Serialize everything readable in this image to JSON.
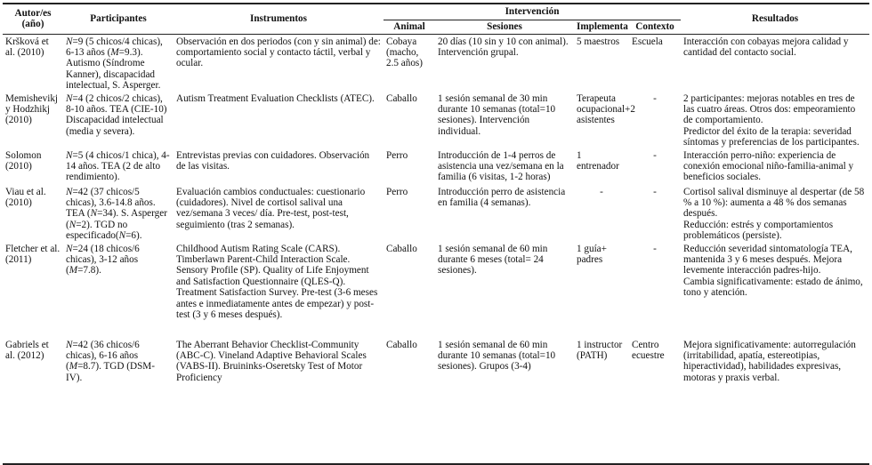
{
  "headers": {
    "autor": "Autor/es (año)",
    "participantes": "Participantes",
    "instrumentos": "Instrumentos",
    "intervencion": "Intervención",
    "animal": "Animal",
    "sesiones": "Sesiones",
    "implementa": "Implementa",
    "contexto": "Contexto",
    "resultados": "Resultados"
  },
  "rows": [
    {
      "autor": "Kršková et al. (2010)",
      "participantes": [
        {
          "t": "N",
          "i": true
        },
        {
          "t": "=9 (5 chicos/4 chicas), 6-13 años ("
        },
        {
          "t": "M",
          "i": true
        },
        {
          "t": "=9.3). Autismo (Síndrome Kanner), discapacidad intelectual, S. Asperger."
        }
      ],
      "instrumentos": "Observación en dos periodos (con y sin animal) de: comportamiento social y contacto táctil, verbal y ocular.",
      "animal": "Cobaya (macho, 2.5 años)",
      "sesiones": "20 días (10 sin y 10 con animal). Intervención grupal.",
      "implementa": "5 maestros",
      "contexto": "Escuela",
      "resultados": [
        "Interacción con cobayas mejora calidad y cantidad del contacto social."
      ]
    },
    {
      "autor": "Memishevikj y Hodzhikj (2010)",
      "participantes": [
        {
          "t": "N",
          "i": true
        },
        {
          "t": "=4 (2 chicos/2 chicas), 8-10 años. TEA (CIE-10) Discapacidad intelectual (media y severa)."
        }
      ],
      "instrumentos": "Autism Treatment Evaluation Checklists (ATEC).",
      "animal": "Caballo",
      "sesiones": "1 sesión semanal de 30 min durante 10 semanas (total=10 sesiones). Intervención individual.",
      "implementa": "Terapeuta ocupacional+2 asistentes",
      "contexto": "-",
      "resultados": [
        "2 participantes: mejoras notables en tres de las cuatro áreas. Otros dos: empeoramiento de comportamiento.",
        "Predictor del éxito de la terapia: severidad síntomas y preferencias de los participantes."
      ]
    },
    {
      "autor": "Solomon (2010)",
      "participantes": [
        {
          "t": "N",
          "i": true
        },
        {
          "t": "=5 (4 chicos/1 chica), 4-14 años. TEA (2 de alto rendimiento)."
        }
      ],
      "instrumentos": "Entrevistas previas con cuidadores. Observación de las visitas.",
      "animal": "Perro",
      "sesiones": "Introducción de 1-4 perros de asistencia una vez/semana en la familia (6 visitas, 1-2 horas)",
      "implementa": "1 entrenador",
      "contexto": "-",
      "resultados": [
        "Interacción perro-niño: experiencia de conexión emocional niño-familia-animal y beneficios sociales."
      ]
    },
    {
      "autor": "Viau et al. (2010)",
      "participantes": [
        {
          "t": "N",
          "i": true
        },
        {
          "t": "=42 (37 chicos/5 chicas), 3.6-14.8 años. TEA ("
        },
        {
          "t": "N",
          "i": true
        },
        {
          "t": "=34). S. Asperger ("
        },
        {
          "t": "N",
          "i": true
        },
        {
          "t": "=2). TGD no especificado("
        },
        {
          "t": "N",
          "i": true
        },
        {
          "t": "=6)."
        }
      ],
      "instrumentos": "Evaluación cambios conductuales: cuestionario (cuidadores). Nivel de cortisol salival una vez/semana 3 veces/ día. Pre-test, post-test, seguimiento (tras 2 semanas).",
      "animal": "Perro",
      "sesiones": "Introducción perro de asistencia en familia (4 semanas).",
      "implementa": "-",
      "contexto": "-",
      "resultados": [
        "Cortisol salival disminuye al despertar (de 58 % a 10 %): aumenta a 48 % dos semanas después.",
        "Reducción: estrés y comportamientos problemáticos (persiste)."
      ]
    },
    {
      "autor": "Fletcher et al. (2011)",
      "participantes": [
        {
          "t": "N",
          "i": true
        },
        {
          "t": "=24 (18 chicos/6 chicas), 3-12 años ("
        },
        {
          "t": "M",
          "i": true
        },
        {
          "t": "=7.8)."
        }
      ],
      "instrumentos": "Childhood Autism Rating Scale (CARS). Timberlawn Parent-Child Interaction Scale. Sensory Profile (SP). Quality of Life Enjoyment and Satisfaction Questionnaire (QLES-Q). Treatment Satisfaction Survey. Pre-test (3-6 meses antes e inmediatamente antes de empezar) y post-test (3 y 6 meses después).",
      "animal": "Caballo",
      "sesiones": "1 sesión semanal de 60 min durante 6 meses (total= 24 sesiones).",
      "implementa": "1 guía+ padres",
      "contexto": "-",
      "resultados": [
        "Reducción severidad sintomatología TEA, mantenida 3 y 6 meses después. Mejora levemente interacción padres-hijo.",
        "Cambia significativamente: estado de ánimo, tono y atención."
      ]
    },
    {
      "autor": "Gabriels et al. (2012)",
      "participantes": [
        {
          "t": "N",
          "i": true
        },
        {
          "t": "=42 (36 chicos/6 chicas), 6-16 años ("
        },
        {
          "t": "M",
          "i": true
        },
        {
          "t": "=8.7). TGD (DSM-IV)."
        }
      ],
      "instrumentos": "The Aberrant Behavior Checklist-Community (ABC-C). Vineland Adaptive Behavioral Scales (VABS-II). Bruininks-Oseretsky Test of Motor Proficiency",
      "animal": "Caballo",
      "sesiones": "1 sesión semanal de 60 min durante 10 semanas (total=10 sesiones). Grupos (3-4)",
      "implementa": "1 instructor (PATH)",
      "contexto": "Centro ecuestre",
      "resultados": [
        "Mejora significativamente: autorregulación (irritabilidad, apatía, estereotipias, hiperactividad), habilidades expresivas, motoras y praxis verbal."
      ]
    }
  ]
}
